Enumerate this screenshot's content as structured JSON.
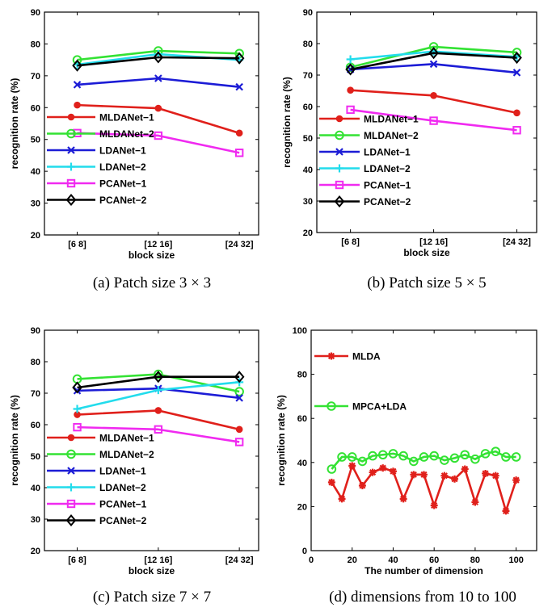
{
  "chart_data": [
    {
      "type": "line",
      "caption": "(a) Patch size 3 × 3",
      "xlabel": "block size",
      "ylabel": "recognition rate (%)",
      "categories": [
        "[6 8]",
        "[12 16]",
        "[24 32]"
      ],
      "ylim": [
        20,
        90
      ],
      "yticks": [
        20,
        30,
        40,
        50,
        60,
        70,
        80,
        90
      ],
      "legend_position": "bottom-left",
      "series": [
        {
          "name": "MLDANet−1",
          "color": "#e0201b",
          "marker": "dot",
          "values": [
            60.8,
            59.8,
            52.0
          ]
        },
        {
          "name": "MLDANet−2",
          "color": "#33e233",
          "marker": "circle",
          "values": [
            75.0,
            77.8,
            77.0
          ]
        },
        {
          "name": "LDANet−1",
          "color": "#1c1cd6",
          "marker": "x",
          "values": [
            67.2,
            69.2,
            66.5
          ]
        },
        {
          "name": "LDANet−2",
          "color": "#22dcec",
          "marker": "plus",
          "values": [
            73.5,
            76.8,
            75.0
          ]
        },
        {
          "name": "PCANet−1",
          "color": "#f02af0",
          "marker": "square",
          "values": [
            52.0,
            51.2,
            45.8
          ]
        },
        {
          "name": "PCANet−2",
          "color": "#000000",
          "marker": "diamond",
          "values": [
            73.2,
            75.8,
            75.5
          ]
        }
      ]
    },
    {
      "type": "line",
      "caption": "(b) Patch size 5 × 5",
      "xlabel": "block size",
      "ylabel": "recognition rate (%)",
      "categories": [
        "[6 8]",
        "[12 16]",
        "[24 32]"
      ],
      "ylim": [
        20,
        90
      ],
      "yticks": [
        20,
        30,
        40,
        50,
        60,
        70,
        80,
        90
      ],
      "legend_position": "bottom-left",
      "series": [
        {
          "name": "MLDANet−1",
          "color": "#e0201b",
          "marker": "dot",
          "values": [
            65.2,
            63.5,
            58.0
          ]
        },
        {
          "name": "MLDANet−2",
          "color": "#33e233",
          "marker": "circle",
          "values": [
            72.5,
            79.0,
            77.2
          ]
        },
        {
          "name": "LDANet−1",
          "color": "#1c1cd6",
          "marker": "x",
          "values": [
            71.8,
            73.5,
            70.8
          ]
        },
        {
          "name": "LDANet−2",
          "color": "#22dcec",
          "marker": "plus",
          "values": [
            75.0,
            77.5,
            75.8
          ]
        },
        {
          "name": "PCANet−1",
          "color": "#f02af0",
          "marker": "square",
          "values": [
            59.0,
            55.5,
            52.5
          ]
        },
        {
          "name": "PCANet−2",
          "color": "#000000",
          "marker": "diamond",
          "values": [
            71.8,
            77.0,
            75.5
          ]
        }
      ]
    },
    {
      "type": "line",
      "caption": "(c) Patch size 7 × 7",
      "xlabel": "block size",
      "ylabel": "recognition rate (%)",
      "categories": [
        "[6 8]",
        "[12 16]",
        "[24 32]"
      ],
      "ylim": [
        20,
        90
      ],
      "yticks": [
        20,
        30,
        40,
        50,
        60,
        70,
        80,
        90
      ],
      "legend_position": "bottom-left",
      "series": [
        {
          "name": "MLDANet−1",
          "color": "#e0201b",
          "marker": "dot",
          "values": [
            63.2,
            64.5,
            58.5
          ]
        },
        {
          "name": "MLDANet−2",
          "color": "#33e233",
          "marker": "circle",
          "values": [
            74.5,
            76.0,
            70.5
          ]
        },
        {
          "name": "LDANet−1",
          "color": "#1c1cd6",
          "marker": "x",
          "values": [
            70.8,
            71.5,
            68.5
          ]
        },
        {
          "name": "LDANet−2",
          "color": "#22dcec",
          "marker": "plus",
          "values": [
            65.0,
            71.0,
            73.5
          ]
        },
        {
          "name": "PCANet−1",
          "color": "#f02af0",
          "marker": "square",
          "values": [
            59.2,
            58.5,
            54.5
          ]
        },
        {
          "name": "PCANet−2",
          "color": "#000000",
          "marker": "diamond",
          "values": [
            71.8,
            75.2,
            75.2
          ]
        }
      ]
    },
    {
      "type": "line",
      "caption": "(d) dimensions from 10 to 100",
      "xlabel": "The number of dimension",
      "ylabel": "recognition rate (%)",
      "xlim": [
        0,
        110
      ],
      "xticks": [
        0,
        20,
        40,
        60,
        80,
        100
      ],
      "ylim": [
        0,
        100
      ],
      "yticks": [
        0,
        20,
        40,
        60,
        80,
        100
      ],
      "legend_position": "top-left",
      "x": [
        10,
        15,
        20,
        25,
        30,
        35,
        40,
        45,
        50,
        55,
        60,
        65,
        70,
        75,
        80,
        85,
        90,
        95,
        100
      ],
      "series": [
        {
          "name": "MLDA",
          "color": "#e0201b",
          "marker": "star",
          "values": [
            31,
            23.5,
            38.5,
            29.5,
            35.5,
            37.5,
            36,
            23.5,
            34.5,
            34.5,
            20.5,
            34,
            32.5,
            37,
            22,
            35,
            34,
            18,
            32
          ]
        },
        {
          "name": "MPCA+LDA",
          "color": "#33e233",
          "marker": "circle",
          "values": [
            37,
            42.5,
            42.5,
            40.5,
            43,
            43.5,
            44,
            43,
            40.5,
            42.5,
            43,
            41,
            42,
            43.5,
            41.5,
            44,
            45,
            42.5,
            42.5
          ]
        }
      ]
    }
  ]
}
